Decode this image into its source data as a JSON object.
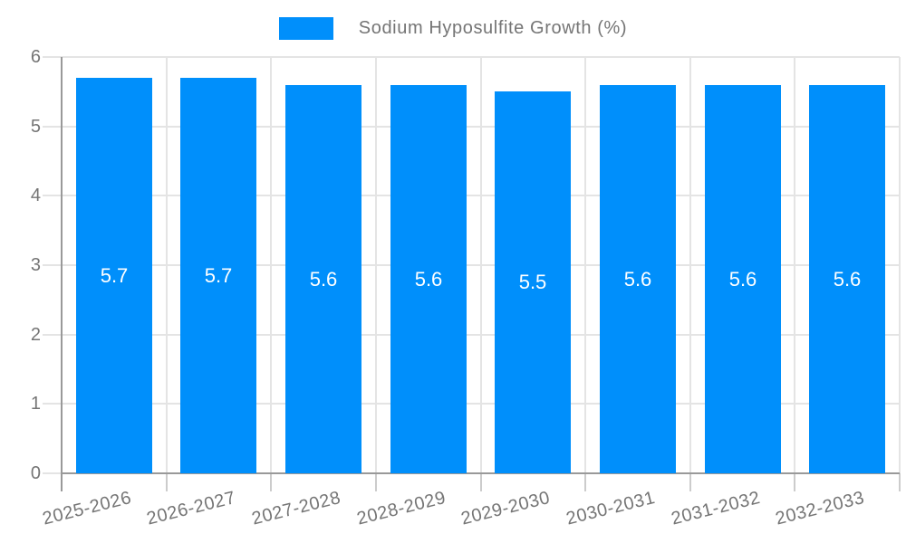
{
  "legend": {
    "label": "Sodium Hyposulfite Growth (%)",
    "swatch_color": "#008FFB"
  },
  "chart_data": {
    "type": "bar",
    "title": "",
    "xlabel": "",
    "ylabel": "",
    "categories": [
      "2025-2026",
      "2026-2027",
      "2027-2028",
      "2028-2029",
      "2029-2030",
      "2030-2031",
      "2031-2032",
      "2032-2033"
    ],
    "series": [
      {
        "name": "Sodium Hyposulfite Growth (%)",
        "values": [
          5.7,
          5.7,
          5.6,
          5.6,
          5.5,
          5.6,
          5.6,
          5.6
        ],
        "data_labels": [
          "5.7",
          "5.7",
          "5.6",
          "5.6",
          "5.5",
          "5.6",
          "5.6",
          "5.6"
        ]
      }
    ],
    "ylim": [
      0,
      6
    ],
    "y_ticks": [
      0,
      1,
      2,
      3,
      4,
      5,
      6
    ],
    "grid": true,
    "legend_position": "top",
    "colors": {
      "bar": "#008FFB",
      "data_label": "#ffffff",
      "axis_text": "#757575",
      "grid_line": "#e4e4e4",
      "axis_line": "#999999",
      "minor_tick": "#cccccc"
    }
  }
}
